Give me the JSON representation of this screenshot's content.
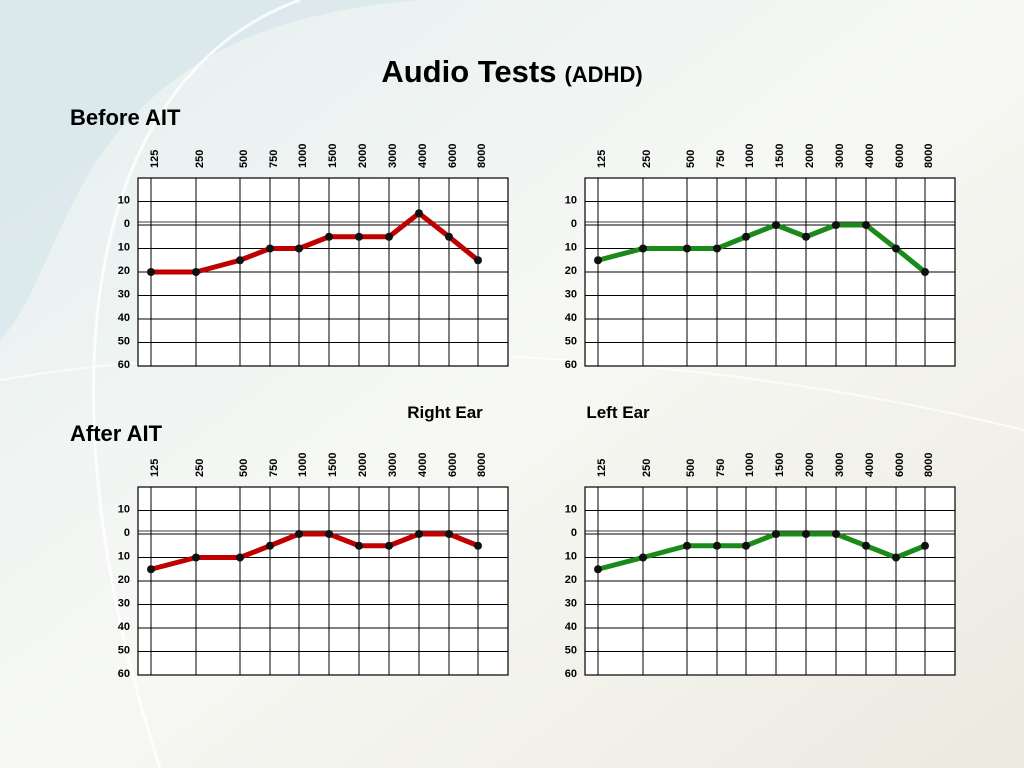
{
  "title": "Audio Tests",
  "subtitle": "(ADHD)",
  "sections": [
    "Before AIT",
    "After AIT"
  ],
  "legend": [
    {
      "name": "Right Ear",
      "color": "#c00000"
    },
    {
      "name": "Left Ear",
      "color": "#1a8a1a"
    }
  ],
  "chart_data": [
    {
      "type": "line",
      "categories": [
        "125",
        "250",
        "500",
        "750",
        "1000",
        "1500",
        "2000",
        "3000",
        "4000",
        "6000",
        "8000"
      ],
      "series": [
        {
          "color": "#c00000",
          "values": [
            20,
            20,
            15,
            10,
            10,
            5,
            5,
            5,
            -5,
            5,
            15
          ]
        }
      ],
      "ylim": [
        -20,
        60
      ],
      "y_inverted": true,
      "grid": true,
      "yticks": [
        {
          "value": -10,
          "label": "10"
        },
        0,
        10,
        20,
        30,
        40,
        50,
        60
      ]
    },
    {
      "type": "line",
      "categories": [
        "125",
        "250",
        "500",
        "750",
        "1000",
        "1500",
        "2000",
        "3000",
        "4000",
        "6000",
        "8000"
      ],
      "series": [
        {
          "color": "#1a8a1a",
          "values": [
            15,
            10,
            10,
            10,
            5,
            0,
            5,
            0,
            0,
            10,
            20
          ]
        }
      ],
      "ylim": [
        -20,
        60
      ],
      "y_inverted": true,
      "grid": true,
      "yticks": [
        {
          "value": -10,
          "label": "10"
        },
        0,
        10,
        20,
        30,
        40,
        50,
        60
      ]
    },
    {
      "type": "line",
      "categories": [
        "125",
        "250",
        "500",
        "750",
        "1000",
        "1500",
        "2000",
        "3000",
        "4000",
        "6000",
        "8000"
      ],
      "series": [
        {
          "color": "#c00000",
          "values": [
            15,
            10,
            10,
            5,
            0,
            0,
            5,
            5,
            0,
            0,
            5
          ]
        }
      ],
      "ylim": [
        -20,
        60
      ],
      "y_inverted": true,
      "grid": true,
      "yticks": [
        {
          "value": -10,
          "label": "10"
        },
        0,
        10,
        20,
        30,
        40,
        50,
        60
      ]
    },
    {
      "type": "line",
      "categories": [
        "125",
        "250",
        "500",
        "750",
        "1000",
        "1500",
        "2000",
        "3000",
        "4000",
        "6000",
        "8000"
      ],
      "series": [
        {
          "color": "#1a8a1a",
          "values": [
            15,
            10,
            5,
            5,
            5,
            0,
            0,
            0,
            5,
            10,
            5
          ]
        }
      ],
      "ylim": [
        -20,
        60
      ],
      "y_inverted": true,
      "grid": true,
      "yticks": [
        {
          "value": -10,
          "label": "10"
        },
        0,
        10,
        20,
        30,
        40,
        50,
        60
      ]
    }
  ]
}
